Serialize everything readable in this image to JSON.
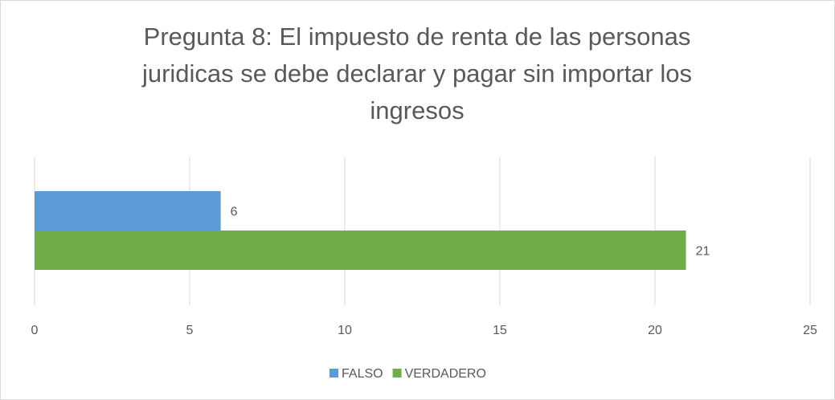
{
  "chart_data": {
    "type": "bar",
    "orientation": "horizontal",
    "title": [
      "Pregunta 8: El impuesto de renta de las personas",
      "juridicas se debe declarar y pagar sin importar los",
      "ingresos"
    ],
    "categories": [
      null
    ],
    "series": [
      {
        "name": "FALSO",
        "color": "#5b9bd5",
        "values": [
          6
        ]
      },
      {
        "name": "VERDADERO",
        "color": "#70ad47",
        "values": [
          21
        ]
      }
    ],
    "xlim": [
      0,
      25
    ],
    "xticks": [
      0,
      5,
      10,
      15,
      20,
      25
    ],
    "grid": true,
    "legend": "bottom"
  }
}
